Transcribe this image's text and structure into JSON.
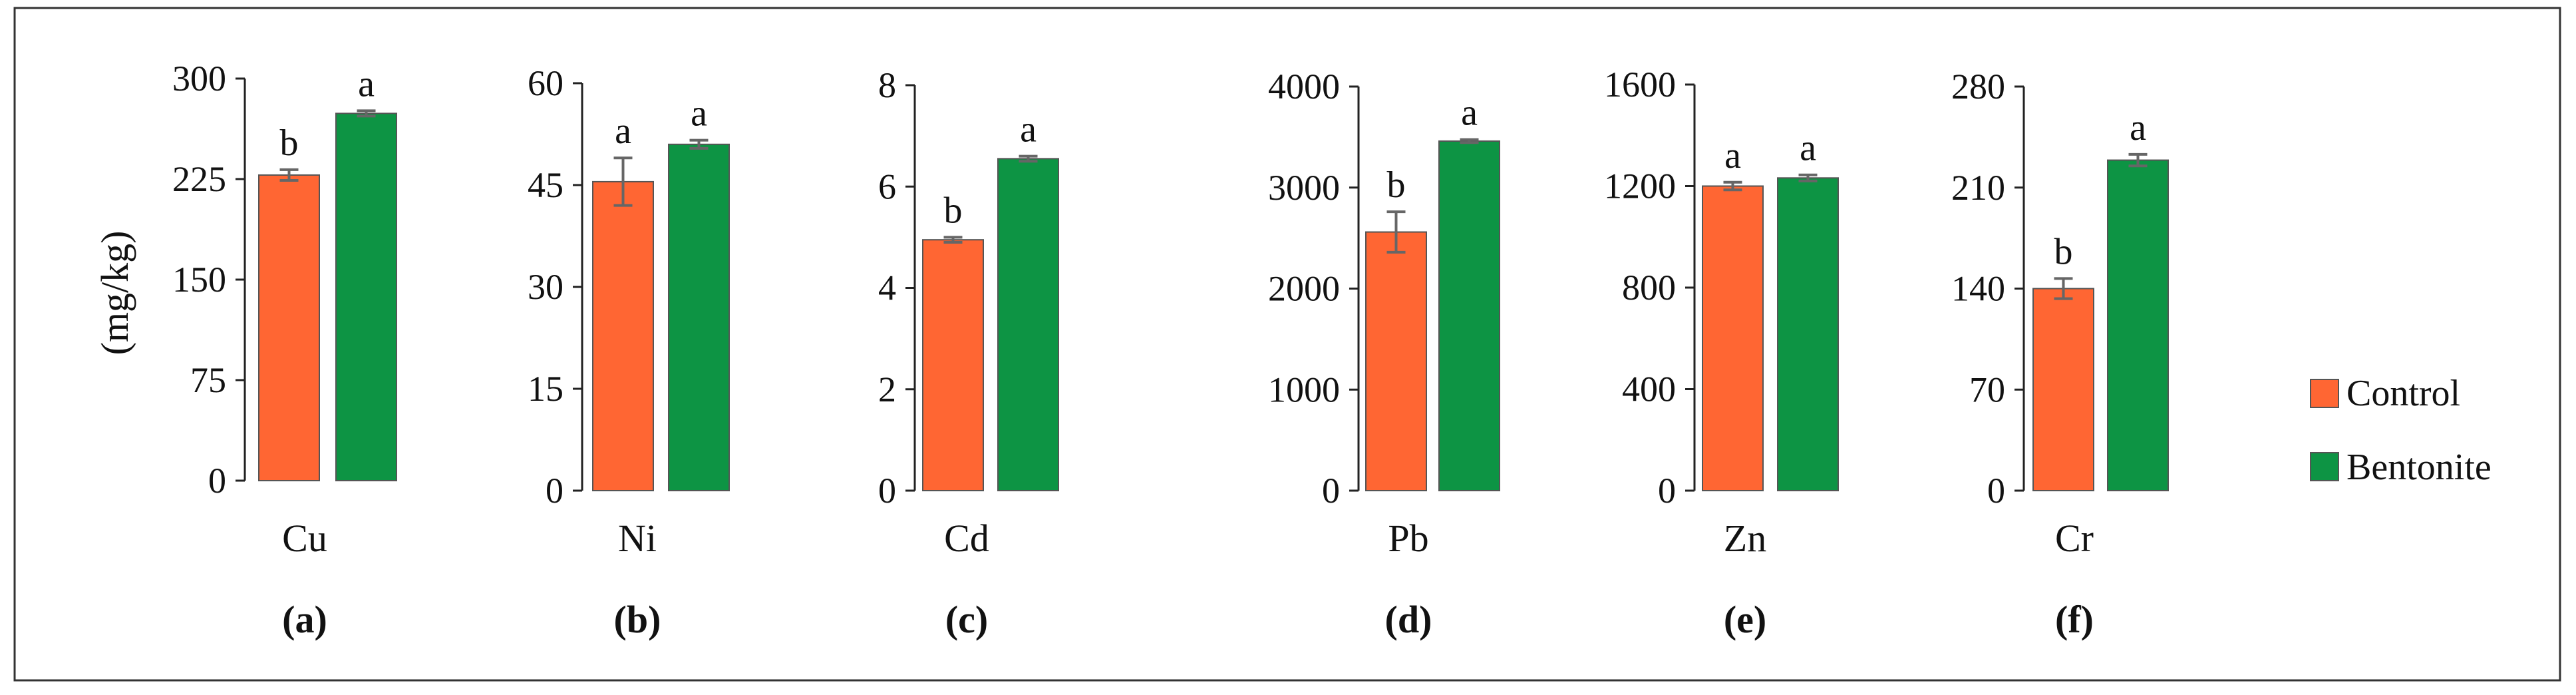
{
  "figure": {
    "y_axis_label": "(mg/kg)",
    "legend": [
      {
        "label": "Control",
        "color": "#FF6633"
      },
      {
        "label": "Bentonite",
        "color": "#0D9444"
      }
    ],
    "frame_color": "#333333"
  },
  "chart_data": [
    {
      "type": "bar",
      "panel_label": "(a)",
      "xlabel": "Cu",
      "ylim": [
        0,
        300
      ],
      "yticks": [
        "0",
        "75",
        "150",
        "225",
        "300"
      ],
      "series": [
        {
          "name": "Control",
          "value": 228,
          "error": 4,
          "letter": "b"
        },
        {
          "name": "Bentonite",
          "value": 274,
          "error": 2,
          "letter": "a"
        }
      ]
    },
    {
      "type": "bar",
      "panel_label": "(b)",
      "xlabel": "Ni",
      "ylim": [
        0,
        60
      ],
      "yticks": [
        "0",
        "15",
        "30",
        "45",
        "60"
      ],
      "series": [
        {
          "name": "Control",
          "value": 45.5,
          "error": 3.5,
          "letter": "a"
        },
        {
          "name": "Bentonite",
          "value": 51,
          "error": 0.6,
          "letter": "a"
        }
      ]
    },
    {
      "type": "bar",
      "panel_label": "(c)",
      "xlabel": "Cd",
      "ylim": [
        0,
        8
      ],
      "yticks": [
        "0",
        "2",
        "4",
        "6",
        "8"
      ],
      "series": [
        {
          "name": "Control",
          "value": 4.95,
          "error": 0.05,
          "letter": "b"
        },
        {
          "name": "Bentonite",
          "value": 6.55,
          "error": 0.05,
          "letter": "a"
        }
      ]
    },
    {
      "type": "bar",
      "panel_label": "(d)",
      "xlabel": "Pb",
      "ylim": [
        0,
        4000
      ],
      "yticks": [
        "0",
        "1000",
        "2000",
        "3000",
        "4000"
      ],
      "series": [
        {
          "name": "Control",
          "value": 2560,
          "error": 200,
          "letter": "b"
        },
        {
          "name": "Bentonite",
          "value": 3460,
          "error": 15,
          "letter": "a"
        }
      ]
    },
    {
      "type": "bar",
      "panel_label": "(e)",
      "xlabel": "Zn",
      "ylim": [
        0,
        1600
      ],
      "yticks": [
        "0",
        "400",
        "800",
        "1200",
        "1600"
      ],
      "series": [
        {
          "name": "Control",
          "value": 1200,
          "error": 15,
          "letter": "a"
        },
        {
          "name": "Bentonite",
          "value": 1232,
          "error": 12,
          "letter": "a"
        }
      ]
    },
    {
      "type": "bar",
      "panel_label": "(f)",
      "xlabel": "Cr",
      "ylim": [
        0,
        280
      ],
      "yticks": [
        "0",
        "70",
        "140",
        "210",
        "280"
      ],
      "series": [
        {
          "name": "Control",
          "value": 140,
          "error": 7,
          "letter": "b"
        },
        {
          "name": "Bentonite",
          "value": 229,
          "error": 4,
          "letter": "a"
        }
      ]
    }
  ]
}
